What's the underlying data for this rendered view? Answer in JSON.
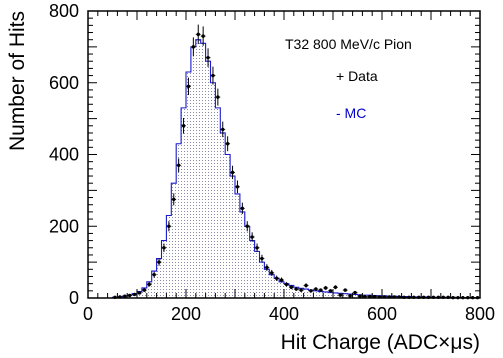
{
  "chart_data": {
    "type": "histogram",
    "xlabel": "Hit Charge (ADC×μs)",
    "ylabel": "Number of Hits",
    "xlim": [
      0,
      800
    ],
    "ylim": [
      0,
      800
    ],
    "xticks": [
      0,
      200,
      400,
      600,
      800
    ],
    "yticks": [
      0,
      200,
      400,
      600,
      800
    ],
    "legend": {
      "title": "T32 800 MeV/c Pion",
      "entries": [
        {
          "label": "+ Data",
          "color": "#000000"
        },
        {
          "label": "- MC",
          "color": "#0000cc"
        }
      ]
    },
    "bin_width": 10,
    "series": [
      {
        "name": "Data",
        "style": "points-with-error-bars",
        "x": [
          50,
          60,
          70,
          80,
          90,
          100,
          110,
          120,
          130,
          140,
          150,
          160,
          170,
          180,
          190,
          200,
          210,
          220,
          230,
          240,
          250,
          260,
          270,
          280,
          290,
          300,
          310,
          320,
          330,
          340,
          350,
          360,
          370,
          380,
          390,
          400,
          410,
          420,
          430,
          440,
          450,
          460,
          470,
          480,
          490,
          500,
          510,
          520,
          530,
          540,
          550,
          560,
          570,
          580,
          590,
          600,
          610,
          620,
          630,
          640,
          650,
          660,
          670,
          680,
          690,
          700,
          710,
          720,
          730,
          740,
          750,
          760,
          770,
          780,
          790
        ],
        "y": [
          2,
          3,
          5,
          7,
          10,
          14,
          22,
          38,
          65,
          100,
          140,
          200,
          275,
          370,
          480,
          590,
          700,
          735,
          730,
          670,
          620,
          560,
          470,
          430,
          350,
          310,
          250,
          200,
          170,
          140,
          110,
          85,
          70,
          55,
          50,
          38,
          30,
          25,
          22,
          35,
          20,
          25,
          22,
          28,
          20,
          30,
          8,
          22,
          6,
          15,
          5,
          4,
          4,
          4,
          3,
          3,
          3,
          3,
          3,
          2,
          2,
          2,
          2,
          2,
          2,
          2,
          2,
          2,
          2,
          1,
          1,
          1,
          1,
          1,
          1
        ]
      },
      {
        "name": "MC",
        "style": "step-filled",
        "x": [
          50,
          60,
          70,
          80,
          90,
          100,
          110,
          120,
          130,
          140,
          150,
          160,
          170,
          180,
          190,
          200,
          210,
          220,
          230,
          240,
          250,
          260,
          270,
          280,
          290,
          300,
          310,
          320,
          330,
          340,
          350,
          360,
          370,
          380,
          390,
          400,
          410,
          420,
          430,
          440,
          450,
          460,
          470,
          480,
          490,
          500,
          510,
          520,
          530,
          540,
          550,
          560,
          570,
          580,
          590,
          600,
          610,
          620,
          630,
          640,
          650,
          660,
          670,
          680,
          690,
          700,
          710,
          720,
          730,
          740,
          750,
          760,
          770,
          780,
          790
        ],
        "y": [
          2,
          3,
          5,
          8,
          12,
          18,
          28,
          45,
          75,
          110,
          160,
          230,
          320,
          430,
          530,
          630,
          700,
          720,
          710,
          660,
          600,
          530,
          460,
          400,
          340,
          290,
          240,
          200,
          160,
          130,
          100,
          80,
          65,
          55,
          45,
          40,
          35,
          30,
          27,
          25,
          22,
          20,
          18,
          17,
          15,
          14,
          13,
          12,
          11,
          10,
          9,
          8,
          8,
          7,
          6,
          6,
          5,
          5,
          4,
          4,
          4,
          3,
          3,
          3,
          3,
          2,
          2,
          2,
          2,
          2,
          1,
          1,
          1,
          1,
          1
        ]
      }
    ]
  }
}
